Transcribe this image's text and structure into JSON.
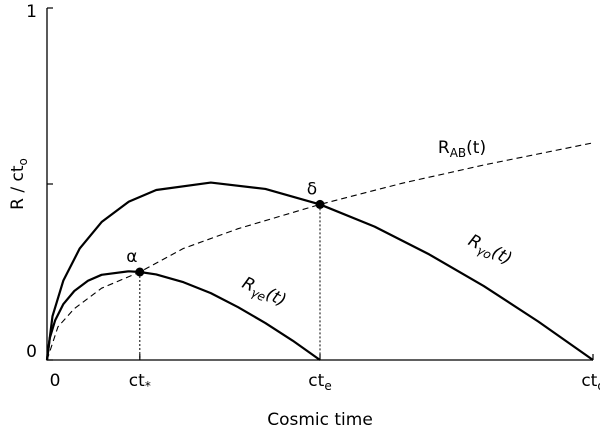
{
  "chart_data": {
    "type": "line",
    "xlabel": "Cosmic time",
    "ylabel": {
      "text": "R / ct",
      "sub": "o"
    },
    "xlim": [
      0,
      1
    ],
    "ylim": [
      0,
      1
    ],
    "xticks": [
      {
        "value": 0,
        "label": "0"
      },
      {
        "value": 0.17,
        "label": "ct",
        "sub": "*"
      },
      {
        "value": 0.5,
        "label": "ct",
        "sub": "e"
      },
      {
        "value": 1,
        "label": "ct",
        "sub": "o"
      }
    ],
    "yticks": [
      {
        "value": 0,
        "label": "0"
      },
      {
        "value": 0.5,
        "label": null
      },
      {
        "value": 1,
        "label": "1"
      }
    ],
    "series": [
      {
        "name": "R",
        "sub": "γo",
        "suffix": "(t)",
        "color": "#000000",
        "dashed": false,
        "x": [
          0,
          0.01,
          0.03,
          0.06,
          0.1,
          0.15,
          0.2,
          0.3,
          0.4,
          0.5,
          0.6,
          0.7,
          0.8,
          0.9,
          1
        ],
        "values": [
          0,
          0.124,
          0.226,
          0.317,
          0.392,
          0.45,
          0.483,
          0.504,
          0.486,
          0.442,
          0.379,
          0.3,
          0.21,
          0.109,
          0
        ]
      },
      {
        "name": "R",
        "sub": "γe",
        "suffix": "(t)",
        "color": "#000000",
        "dashed": false,
        "x": [
          0,
          0.005,
          0.015,
          0.03,
          0.05,
          0.075,
          0.1,
          0.15,
          0.17,
          0.2,
          0.25,
          0.3,
          0.35,
          0.4,
          0.45,
          0.5
        ],
        "values": [
          0,
          0.062,
          0.113,
          0.159,
          0.196,
          0.225,
          0.242,
          0.252,
          0.25,
          0.243,
          0.221,
          0.19,
          0.15,
          0.105,
          0.055,
          0
        ]
      },
      {
        "name": "R",
        "sub": "AB",
        "suffix": "(t)",
        "color": "#000000",
        "dashed": true,
        "x": [
          0,
          0.02,
          0.05,
          0.1,
          0.17,
          0.25,
          0.35,
          0.5,
          0.65,
          0.8,
          1
        ],
        "values": [
          0,
          0.094,
          0.146,
          0.204,
          0.25,
          0.317,
          0.373,
          0.442,
          0.502,
          0.554,
          0.617
        ]
      }
    ],
    "points": [
      {
        "label": "α",
        "x": 0.17,
        "y": 0.25
      },
      {
        "label": "δ",
        "x": 0.5,
        "y": 0.442
      }
    ]
  }
}
